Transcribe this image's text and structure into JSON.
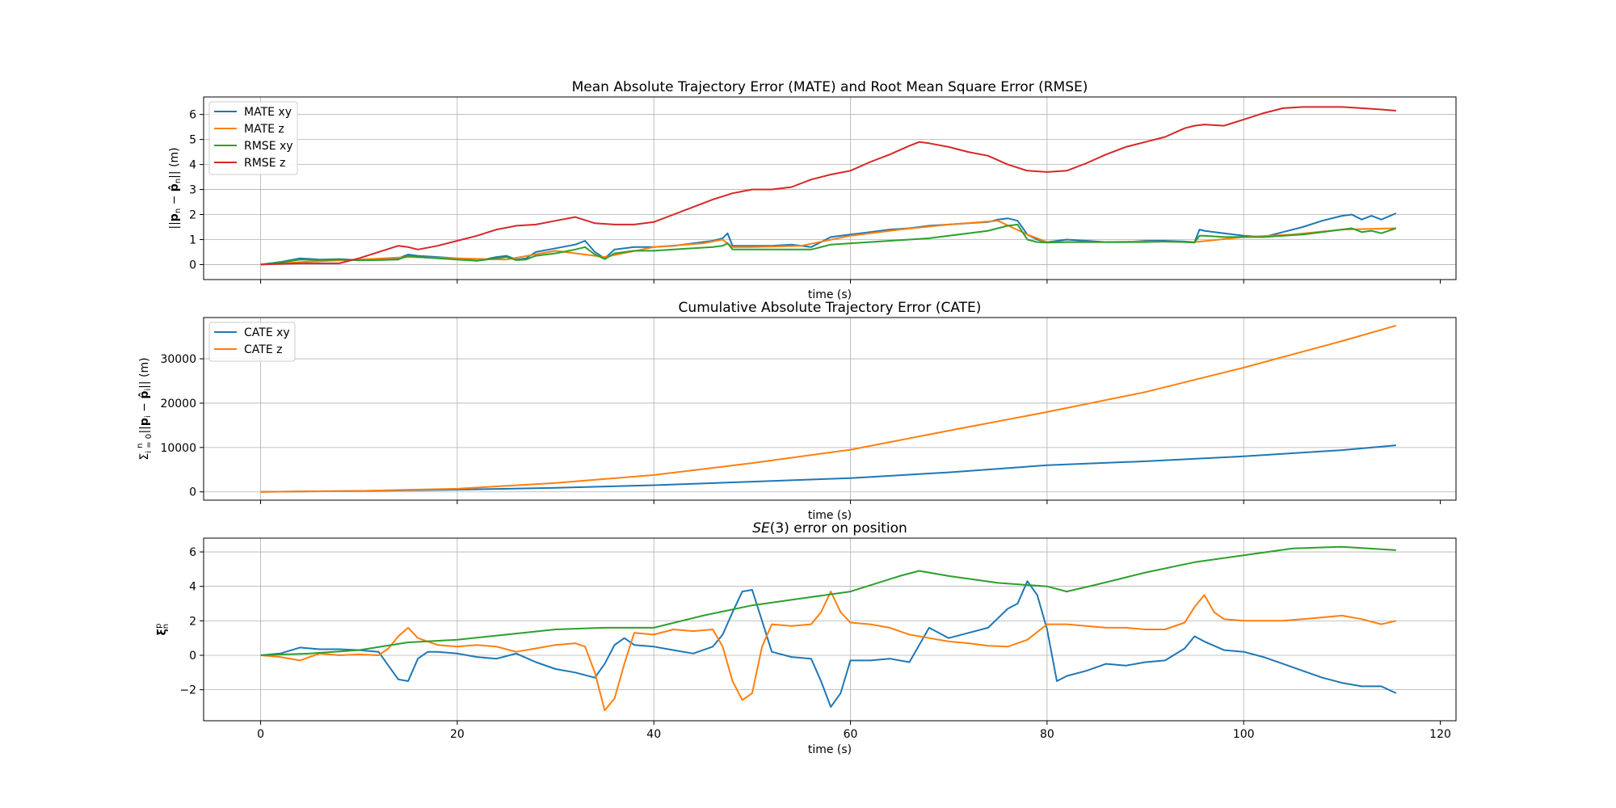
{
  "chart_data": [
    {
      "type": "line",
      "title": "Mean Absolute Trajectory Error (MATE) and Root Mean Square Error (RMSE)",
      "xlabel": "time (s)",
      "ylabel": "||p_n − p̂_n|| (m)",
      "xlim": [
        -5.8,
        121.6
      ],
      "ylim": [
        -0.6,
        6.7
      ],
      "yticks": [
        0,
        1,
        2,
        3,
        4,
        5,
        6
      ],
      "grid": true,
      "legend": "upper-left",
      "series": [
        {
          "name": "MATE xy",
          "color": "#1f77b4",
          "x": [
            0,
            2,
            4,
            6,
            8,
            10,
            12,
            14,
            15,
            16,
            18,
            20,
            22,
            24,
            25,
            26,
            27,
            28,
            30,
            32,
            33,
            34,
            35,
            36,
            38,
            40,
            42,
            44,
            46,
            47,
            47.5,
            48,
            50,
            52,
            54,
            56,
            57,
            58,
            60,
            62,
            64,
            66,
            68,
            70,
            72,
            74,
            75,
            76,
            77,
            78,
            79,
            80,
            82,
            84,
            86,
            88,
            90,
            92,
            94,
            95,
            95.5,
            96,
            98,
            100,
            102,
            104,
            106,
            108,
            110,
            111,
            112,
            113,
            114,
            115.5
          ],
          "values": [
            0,
            0.1,
            0.25,
            0.2,
            0.22,
            0.18,
            0.2,
            0.25,
            0.4,
            0.35,
            0.3,
            0.25,
            0.15,
            0.3,
            0.35,
            0.2,
            0.25,
            0.5,
            0.65,
            0.8,
            0.95,
            0.5,
            0.25,
            0.6,
            0.7,
            0.7,
            0.75,
            0.85,
            0.95,
            1.05,
            1.25,
            0.75,
            0.75,
            0.75,
            0.8,
            0.7,
            0.9,
            1.1,
            1.2,
            1.3,
            1.4,
            1.45,
            1.55,
            1.6,
            1.65,
            1.7,
            1.8,
            1.85,
            1.75,
            1.2,
            1.0,
            0.9,
            1.0,
            0.95,
            0.9,
            0.9,
            0.95,
            0.95,
            0.92,
            0.9,
            1.4,
            1.35,
            1.25,
            1.15,
            1.1,
            1.3,
            1.5,
            1.75,
            1.95,
            2.0,
            1.8,
            1.95,
            1.8,
            2.05
          ]
        },
        {
          "name": "MATE z",
          "color": "#ff7f0e",
          "x": [
            0,
            5,
            10,
            15,
            20,
            25,
            30,
            35,
            40,
            45,
            47,
            48,
            50,
            55,
            60,
            65,
            70,
            75,
            78,
            80,
            85,
            90,
            95,
            100,
            105,
            110,
            115.5
          ],
          "values": [
            0,
            0.12,
            0.2,
            0.3,
            0.25,
            0.2,
            0.55,
            0.3,
            0.7,
            0.85,
            1.0,
            0.7,
            0.7,
            0.75,
            1.15,
            1.4,
            1.6,
            1.75,
            1.2,
            0.9,
            0.9,
            0.92,
            0.9,
            1.1,
            1.2,
            1.4,
            1.45
          ]
        },
        {
          "name": "RMSE xy",
          "color": "#2ca02c",
          "x": [
            0,
            2,
            4,
            6,
            8,
            10,
            12,
            14,
            15,
            16,
            18,
            20,
            22,
            24,
            25,
            26,
            27,
            28,
            30,
            32,
            33,
            34,
            35,
            36,
            38,
            40,
            42,
            44,
            46,
            47,
            47.5,
            48,
            50,
            52,
            54,
            56,
            57,
            58,
            60,
            62,
            64,
            66,
            68,
            70,
            72,
            74,
            75,
            76,
            77,
            78,
            79,
            80,
            82,
            84,
            86,
            88,
            90,
            92,
            94,
            95,
            95.5,
            96,
            98,
            100,
            102,
            104,
            106,
            108,
            110,
            111,
            112,
            113,
            114,
            115.5
          ],
          "values": [
            0,
            0.08,
            0.2,
            0.18,
            0.2,
            0.17,
            0.18,
            0.2,
            0.35,
            0.3,
            0.25,
            0.2,
            0.15,
            0.25,
            0.3,
            0.18,
            0.2,
            0.35,
            0.45,
            0.6,
            0.7,
            0.4,
            0.22,
            0.45,
            0.55,
            0.55,
            0.6,
            0.65,
            0.7,
            0.75,
            0.85,
            0.6,
            0.6,
            0.6,
            0.6,
            0.6,
            0.7,
            0.8,
            0.85,
            0.9,
            0.95,
            1.0,
            1.05,
            1.15,
            1.25,
            1.35,
            1.45,
            1.55,
            1.6,
            1.0,
            0.9,
            0.88,
            0.9,
            0.9,
            0.9,
            0.9,
            0.9,
            0.92,
            0.9,
            0.88,
            1.15,
            1.15,
            1.1,
            1.1,
            1.1,
            1.15,
            1.2,
            1.3,
            1.4,
            1.45,
            1.3,
            1.35,
            1.25,
            1.45
          ]
        },
        {
          "name": "RMSE z",
          "color": "#d62728",
          "x": [
            0,
            4,
            8,
            10,
            12,
            14,
            15,
            16,
            18,
            20,
            22,
            24,
            26,
            28,
            30,
            32,
            34,
            36,
            38,
            40,
            42,
            44,
            46,
            48,
            50,
            52,
            54,
            56,
            58,
            60,
            62,
            64,
            66,
            67,
            68,
            70,
            72,
            74,
            76,
            78,
            80,
            82,
            84,
            86,
            88,
            90,
            92,
            94,
            95,
            96,
            98,
            100,
            102,
            104,
            106,
            108,
            110,
            112,
            114,
            115.5
          ],
          "values": [
            0,
            0.05,
            0.05,
            0.25,
            0.5,
            0.75,
            0.7,
            0.6,
            0.75,
            0.95,
            1.15,
            1.4,
            1.55,
            1.6,
            1.75,
            1.9,
            1.65,
            1.6,
            1.6,
            1.7,
            2.0,
            2.3,
            2.6,
            2.85,
            3.0,
            3.0,
            3.1,
            3.4,
            3.6,
            3.75,
            4.1,
            4.4,
            4.75,
            4.9,
            4.85,
            4.7,
            4.5,
            4.35,
            4.0,
            3.75,
            3.7,
            3.75,
            4.05,
            4.4,
            4.7,
            4.9,
            5.1,
            5.45,
            5.55,
            5.6,
            5.55,
            5.8,
            6.05,
            6.25,
            6.3,
            6.3,
            6.3,
            6.25,
            6.2,
            6.15
          ]
        }
      ]
    },
    {
      "type": "line",
      "title": "Cumulative Absolute Trajectory Error (CATE)",
      "xlabel": "time (s)",
      "ylabel": "Σ_{i=0}^{n} ||p_i − p̂_i|| (m)",
      "xlim": [
        -5.8,
        121.6
      ],
      "ylim": [
        -1870,
        39300
      ],
      "yticks": [
        0,
        10000,
        20000,
        30000
      ],
      "grid": true,
      "legend": "upper-left",
      "series": [
        {
          "name": "CATE xy",
          "color": "#1f77b4",
          "x": [
            0,
            10,
            20,
            30,
            40,
            50,
            60,
            70,
            80,
            90,
            100,
            110,
            115.5
          ],
          "values": [
            0,
            200,
            500,
            900,
            1500,
            2300,
            3100,
            4400,
            6000,
            6900,
            8000,
            9400,
            10500
          ]
        },
        {
          "name": "CATE z",
          "color": "#ff7f0e",
          "x": [
            0,
            10,
            20,
            30,
            40,
            50,
            60,
            70,
            80,
            90,
            100,
            110,
            115.5
          ],
          "values": [
            0,
            200,
            700,
            2000,
            3800,
            6500,
            9500,
            13800,
            18000,
            22500,
            28000,
            34000,
            37500
          ]
        }
      ]
    },
    {
      "type": "line",
      "title": "SE(3) error on position",
      "xlabel": "time (s)",
      "ylabel": "ξ_n^p",
      "xlim": [
        -5.8,
        121.6
      ],
      "xticks": [
        0,
        20,
        40,
        60,
        80,
        100,
        120
      ],
      "ylim": [
        -3.8,
        6.8
      ],
      "yticks": [
        -2,
        0,
        2,
        4,
        6
      ],
      "grid": true,
      "legend": "none",
      "series": [
        {
          "color": "#1f77b4",
          "x": [
            0,
            2,
            4,
            6,
            8,
            10,
            12,
            13,
            14,
            15,
            16,
            17,
            18,
            20,
            22,
            24,
            26,
            28,
            30,
            32,
            34,
            35,
            36,
            37,
            38,
            40,
            42,
            44,
            46,
            47,
            48,
            49,
            50,
            51,
            52,
            54,
            56,
            57,
            58,
            59,
            60,
            62,
            64,
            66,
            68,
            70,
            72,
            74,
            76,
            77,
            78,
            79,
            80,
            81,
            82,
            84,
            86,
            88,
            90,
            92,
            94,
            95,
            96,
            98,
            100,
            102,
            104,
            106,
            108,
            110,
            112,
            114,
            115.5
          ],
          "values": [
            0,
            0.1,
            0.45,
            0.35,
            0.35,
            0.3,
            0.2,
            -0.6,
            -1.4,
            -1.5,
            -0.2,
            0.2,
            0.2,
            0.1,
            -0.1,
            -0.2,
            0.1,
            -0.4,
            -0.8,
            -1.0,
            -1.3,
            -0.5,
            0.6,
            1.0,
            0.6,
            0.5,
            0.3,
            0.1,
            0.5,
            1.2,
            2.5,
            3.7,
            3.8,
            2.0,
            0.2,
            -0.1,
            -0.2,
            -1.5,
            -3.0,
            -2.2,
            -0.3,
            -0.3,
            -0.2,
            -0.4,
            1.6,
            1.0,
            1.3,
            1.6,
            2.7,
            3.0,
            4.3,
            3.5,
            1.5,
            -1.5,
            -1.2,
            -0.9,
            -0.5,
            -0.6,
            -0.4,
            -0.3,
            0.4,
            1.1,
            0.8,
            0.3,
            0.2,
            -0.1,
            -0.5,
            -0.9,
            -1.3,
            -1.6,
            -1.8,
            -1.8,
            -2.2
          ]
        },
        {
          "color": "#ff7f0e",
          "x": [
            0,
            2,
            4,
            6,
            8,
            10,
            12,
            13,
            14,
            15,
            16,
            17,
            18,
            20,
            22,
            24,
            26,
            28,
            30,
            32,
            33,
            34,
            35,
            36,
            37,
            38,
            40,
            42,
            44,
            46,
            47,
            48,
            49,
            50,
            51,
            52,
            54,
            56,
            57,
            58,
            59,
            60,
            62,
            64,
            66,
            68,
            70,
            72,
            74,
            76,
            78,
            80,
            82,
            84,
            86,
            88,
            90,
            92,
            94,
            95,
            96,
            97,
            98,
            100,
            102,
            104,
            106,
            108,
            110,
            112,
            114,
            115.5
          ],
          "values": [
            0,
            -0.1,
            -0.3,
            0.1,
            0.0,
            0.05,
            0.0,
            0.4,
            1.1,
            1.6,
            1.0,
            0.8,
            0.6,
            0.5,
            0.6,
            0.5,
            0.2,
            0.4,
            0.6,
            0.7,
            0.5,
            -1.0,
            -3.2,
            -2.5,
            -0.5,
            1.3,
            1.2,
            1.5,
            1.4,
            1.5,
            0.5,
            -1.5,
            -2.6,
            -2.2,
            0.5,
            1.8,
            1.7,
            1.8,
            2.5,
            3.7,
            2.5,
            1.9,
            1.8,
            1.6,
            1.2,
            1.0,
            0.8,
            0.7,
            0.55,
            0.5,
            0.9,
            1.8,
            1.8,
            1.7,
            1.6,
            1.6,
            1.5,
            1.5,
            1.9,
            2.8,
            3.5,
            2.5,
            2.1,
            2.0,
            2.0,
            2.0,
            2.1,
            2.2,
            2.3,
            2.1,
            1.8,
            2.0
          ]
        },
        {
          "color": "#2ca02c",
          "x": [
            0,
            5,
            10,
            15,
            20,
            25,
            30,
            35,
            40,
            45,
            50,
            55,
            60,
            65,
            67,
            70,
            75,
            80,
            82,
            85,
            90,
            95,
            100,
            105,
            110,
            115.5
          ],
          "values": [
            0,
            0.1,
            0.3,
            0.75,
            0.9,
            1.2,
            1.5,
            1.6,
            1.6,
            2.3,
            2.9,
            3.3,
            3.7,
            4.6,
            4.9,
            4.6,
            4.2,
            4.0,
            3.7,
            4.1,
            4.8,
            5.4,
            5.8,
            6.2,
            6.3,
            6.1
          ]
        }
      ]
    }
  ]
}
